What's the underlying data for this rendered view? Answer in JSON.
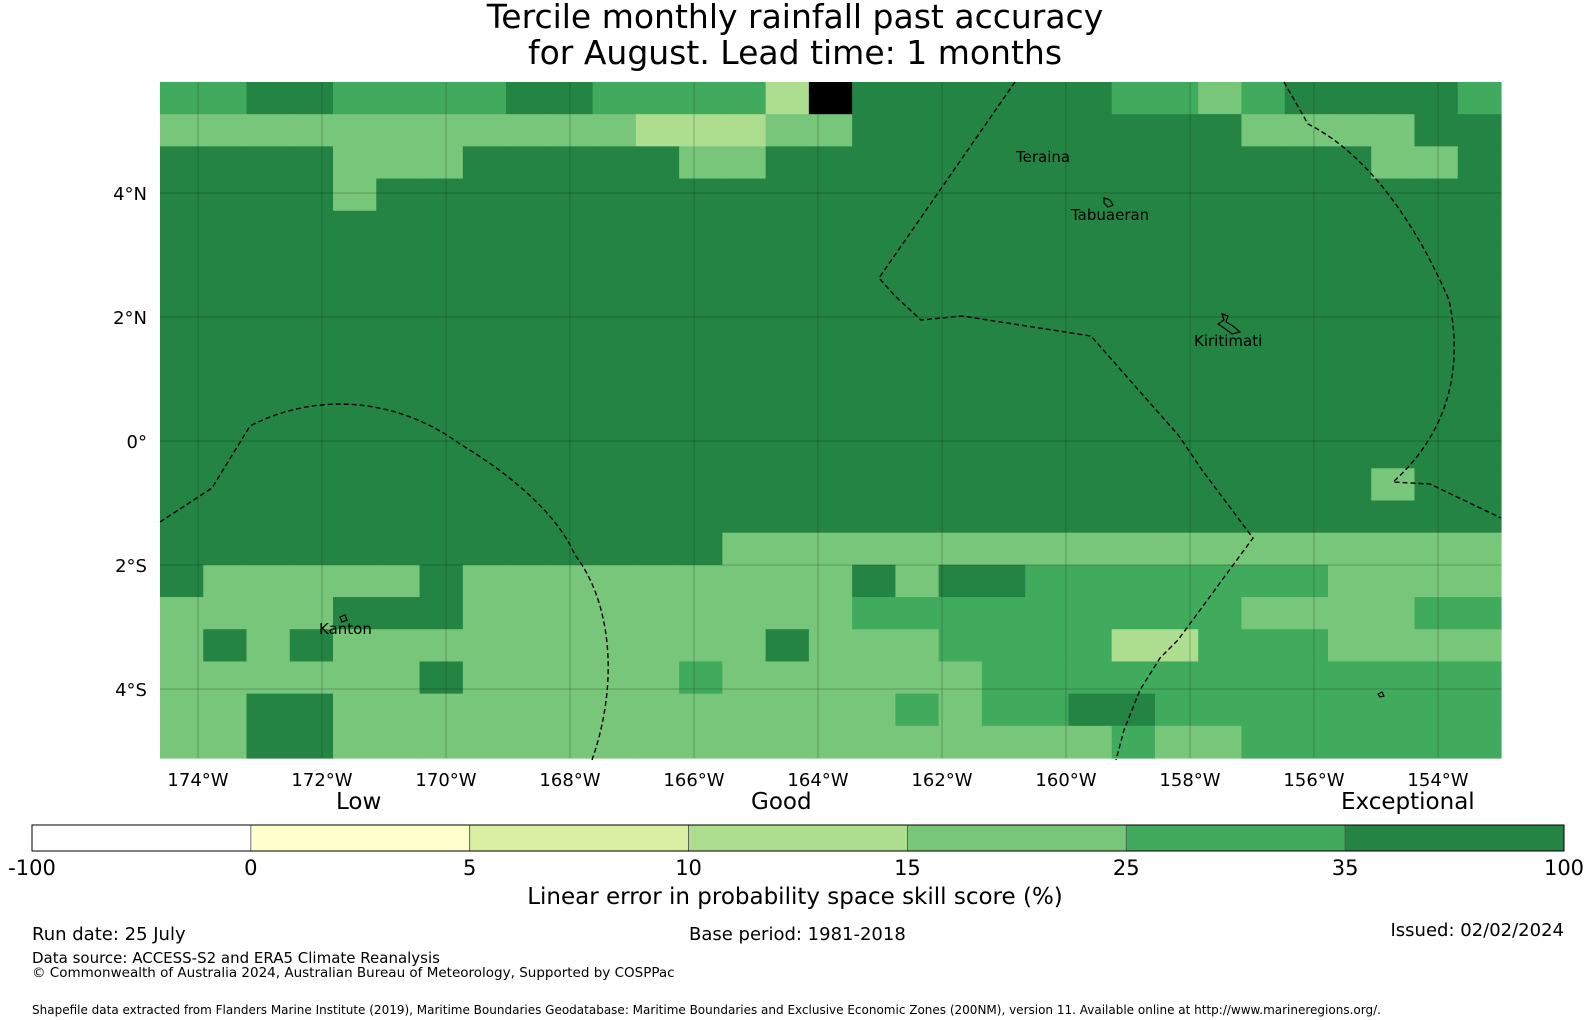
{
  "title": {
    "line1": "Tercile monthly rainfall past accuracy",
    "line2": "for August. Lead time: 1 months"
  },
  "map": {
    "lon_labels": [
      "174°W",
      "172°W",
      "170°W",
      "168°W",
      "166°W",
      "164°W",
      "162°W",
      "160°W",
      "158°W",
      "156°W",
      "154°W"
    ],
    "lat_labels": [
      "4°N",
      "2°N",
      "0°",
      "2°S",
      "4°S"
    ],
    "places": [
      "Teraina",
      "Tabuaeran",
      "Kiritimati",
      "Kanton"
    ],
    "skill_classes_legend": [
      "#ffffff",
      "#ffffcc",
      "#d9f0a3",
      "#addd8e",
      "#78c679",
      "#41ab5d",
      "#238443"
    ],
    "grid_rows_north_to_south": [
      "5566555566555537666666554566665",
      "4444444444433344666666666444466",
      "6666444666664466666666666666446",
      "6666466666666666666666666666666",
      "6666666666666666666666666666666",
      "6666666666666666666666666666666",
      "6666666666666666666666666666666",
      "6666666666666666666666666666666",
      "6666666666666666666666666666666",
      "6666666666666666666666666666666",
      "6666666666666666666666666666666",
      "6666666666666666666666666666666",
      "6666666666666666666666666666466",
      "6666666666666666666666666666666",
      "6666666666666444444444444444444",
      "6444446444444444646655555554444",
      "4444666444444444555555555444455",
      "4646444444444464445555335554444",
      "4444446444445444444555555555555",
      "4466444444444444454556655555555",
      "4466444444444444444444544555555"
    ]
  },
  "legend": {
    "category_labels": [
      "Low",
      "Good",
      "Exceptional"
    ],
    "tick_labels": [
      "-100",
      "0",
      "5",
      "10",
      "15",
      "25",
      "35",
      "100"
    ],
    "colors": [
      "#ffffff",
      "#ffffcc",
      "#d9f0a3",
      "#addd8e",
      "#78c679",
      "#41ab5d",
      "#238443"
    ],
    "axis_label": "Linear error in probability space skill score (%)"
  },
  "footer": {
    "run_date": "Run date: 25 July",
    "base_period": "Base period: 1981-2018",
    "issued": "Issued: 02/02/2024",
    "data_source": "Data source: ACCESS-S2 and ERA5 Climate Reanalysis",
    "copyright": "© Commonwealth of Australia 2024, Australian Bureau of Meteorology, Supported by COSPPac",
    "shapefile": "Shapefile data extracted from Flanders Marine Institute (2019), Maritime Boundaries Geodatabase: Maritime Boundaries and Exclusive Economic Zones (200NM), version 11. Available online at http://www.marineregions.org/."
  }
}
